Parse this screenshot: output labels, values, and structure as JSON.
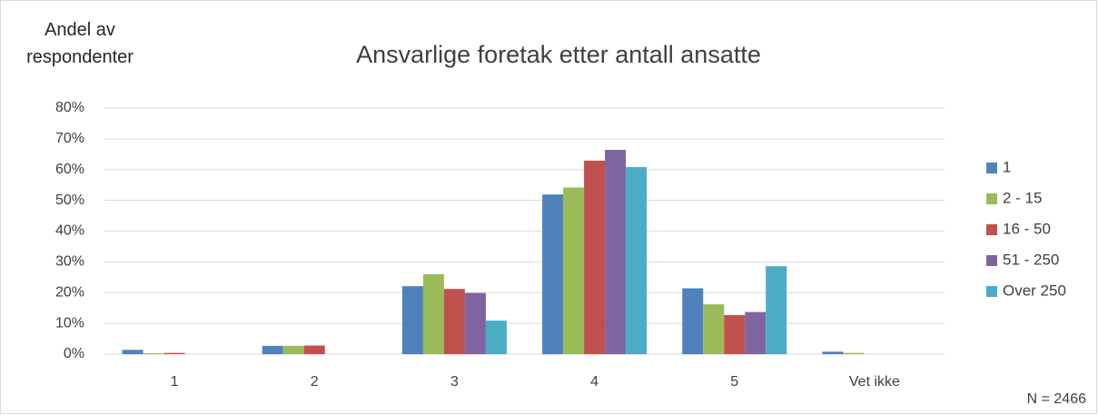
{
  "chart_data": {
    "type": "bar",
    "title": "Ansvarlige foretak etter antall ansatte",
    "y_label": "Andel av respondenter",
    "annotation": "N = 2466",
    "categories": [
      "1",
      "2",
      "3",
      "4",
      "5",
      "Vet ikke"
    ],
    "series": [
      {
        "name": "1",
        "color": "#4f81bd",
        "values": [
          1.4,
          2.7,
          22.1,
          51.9,
          21.4,
          0.8
        ]
      },
      {
        "name": "2 - 15",
        "color": "#9bbb59",
        "values": [
          0.3,
          2.7,
          26.0,
          54.2,
          16.2,
          0.4
        ]
      },
      {
        "name": "16 - 50",
        "color": "#c0504d",
        "values": [
          0.4,
          2.8,
          21.2,
          62.9,
          12.7,
          0
        ]
      },
      {
        "name": "51 - 250",
        "color": "#8064a2",
        "values": [
          0,
          0,
          19.9,
          66.4,
          13.7,
          0
        ]
      },
      {
        "name": "Over 250",
        "color": "#4bacc6",
        "values": [
          0,
          0,
          10.9,
          60.8,
          28.6,
          0
        ]
      }
    ],
    "ylim": [
      0,
      80
    ],
    "yticks": [
      {
        "value": 0,
        "label": "0%"
      },
      {
        "value": 10,
        "label": "10%"
      },
      {
        "value": 20,
        "label": "20%"
      },
      {
        "value": 30,
        "label": "30%"
      },
      {
        "value": 40,
        "label": "40%"
      },
      {
        "value": 50,
        "label": "50%"
      },
      {
        "value": 60,
        "label": "60%"
      },
      {
        "value": 70,
        "label": "70%"
      },
      {
        "value": 80,
        "label": "80%"
      }
    ],
    "grid": true,
    "legend": "right"
  }
}
